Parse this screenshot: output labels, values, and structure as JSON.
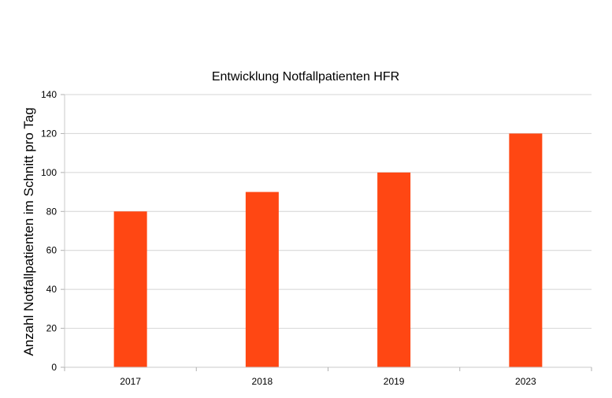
{
  "chart_data": {
    "type": "bar",
    "title": "Entwicklung Notfallpatienten HFR",
    "xlabel": "",
    "ylabel": "Anzahl Notfallpatienten im Schnitt pro Tag",
    "categories": [
      "2017",
      "2018",
      "2019",
      "2023"
    ],
    "values": [
      80,
      90,
      100,
      120
    ],
    "ylim": [
      0,
      140
    ],
    "yticks": [
      0,
      20,
      40,
      60,
      80,
      100,
      120,
      140
    ],
    "grid": true,
    "legend": "none",
    "bar_color": "#ff4713"
  }
}
